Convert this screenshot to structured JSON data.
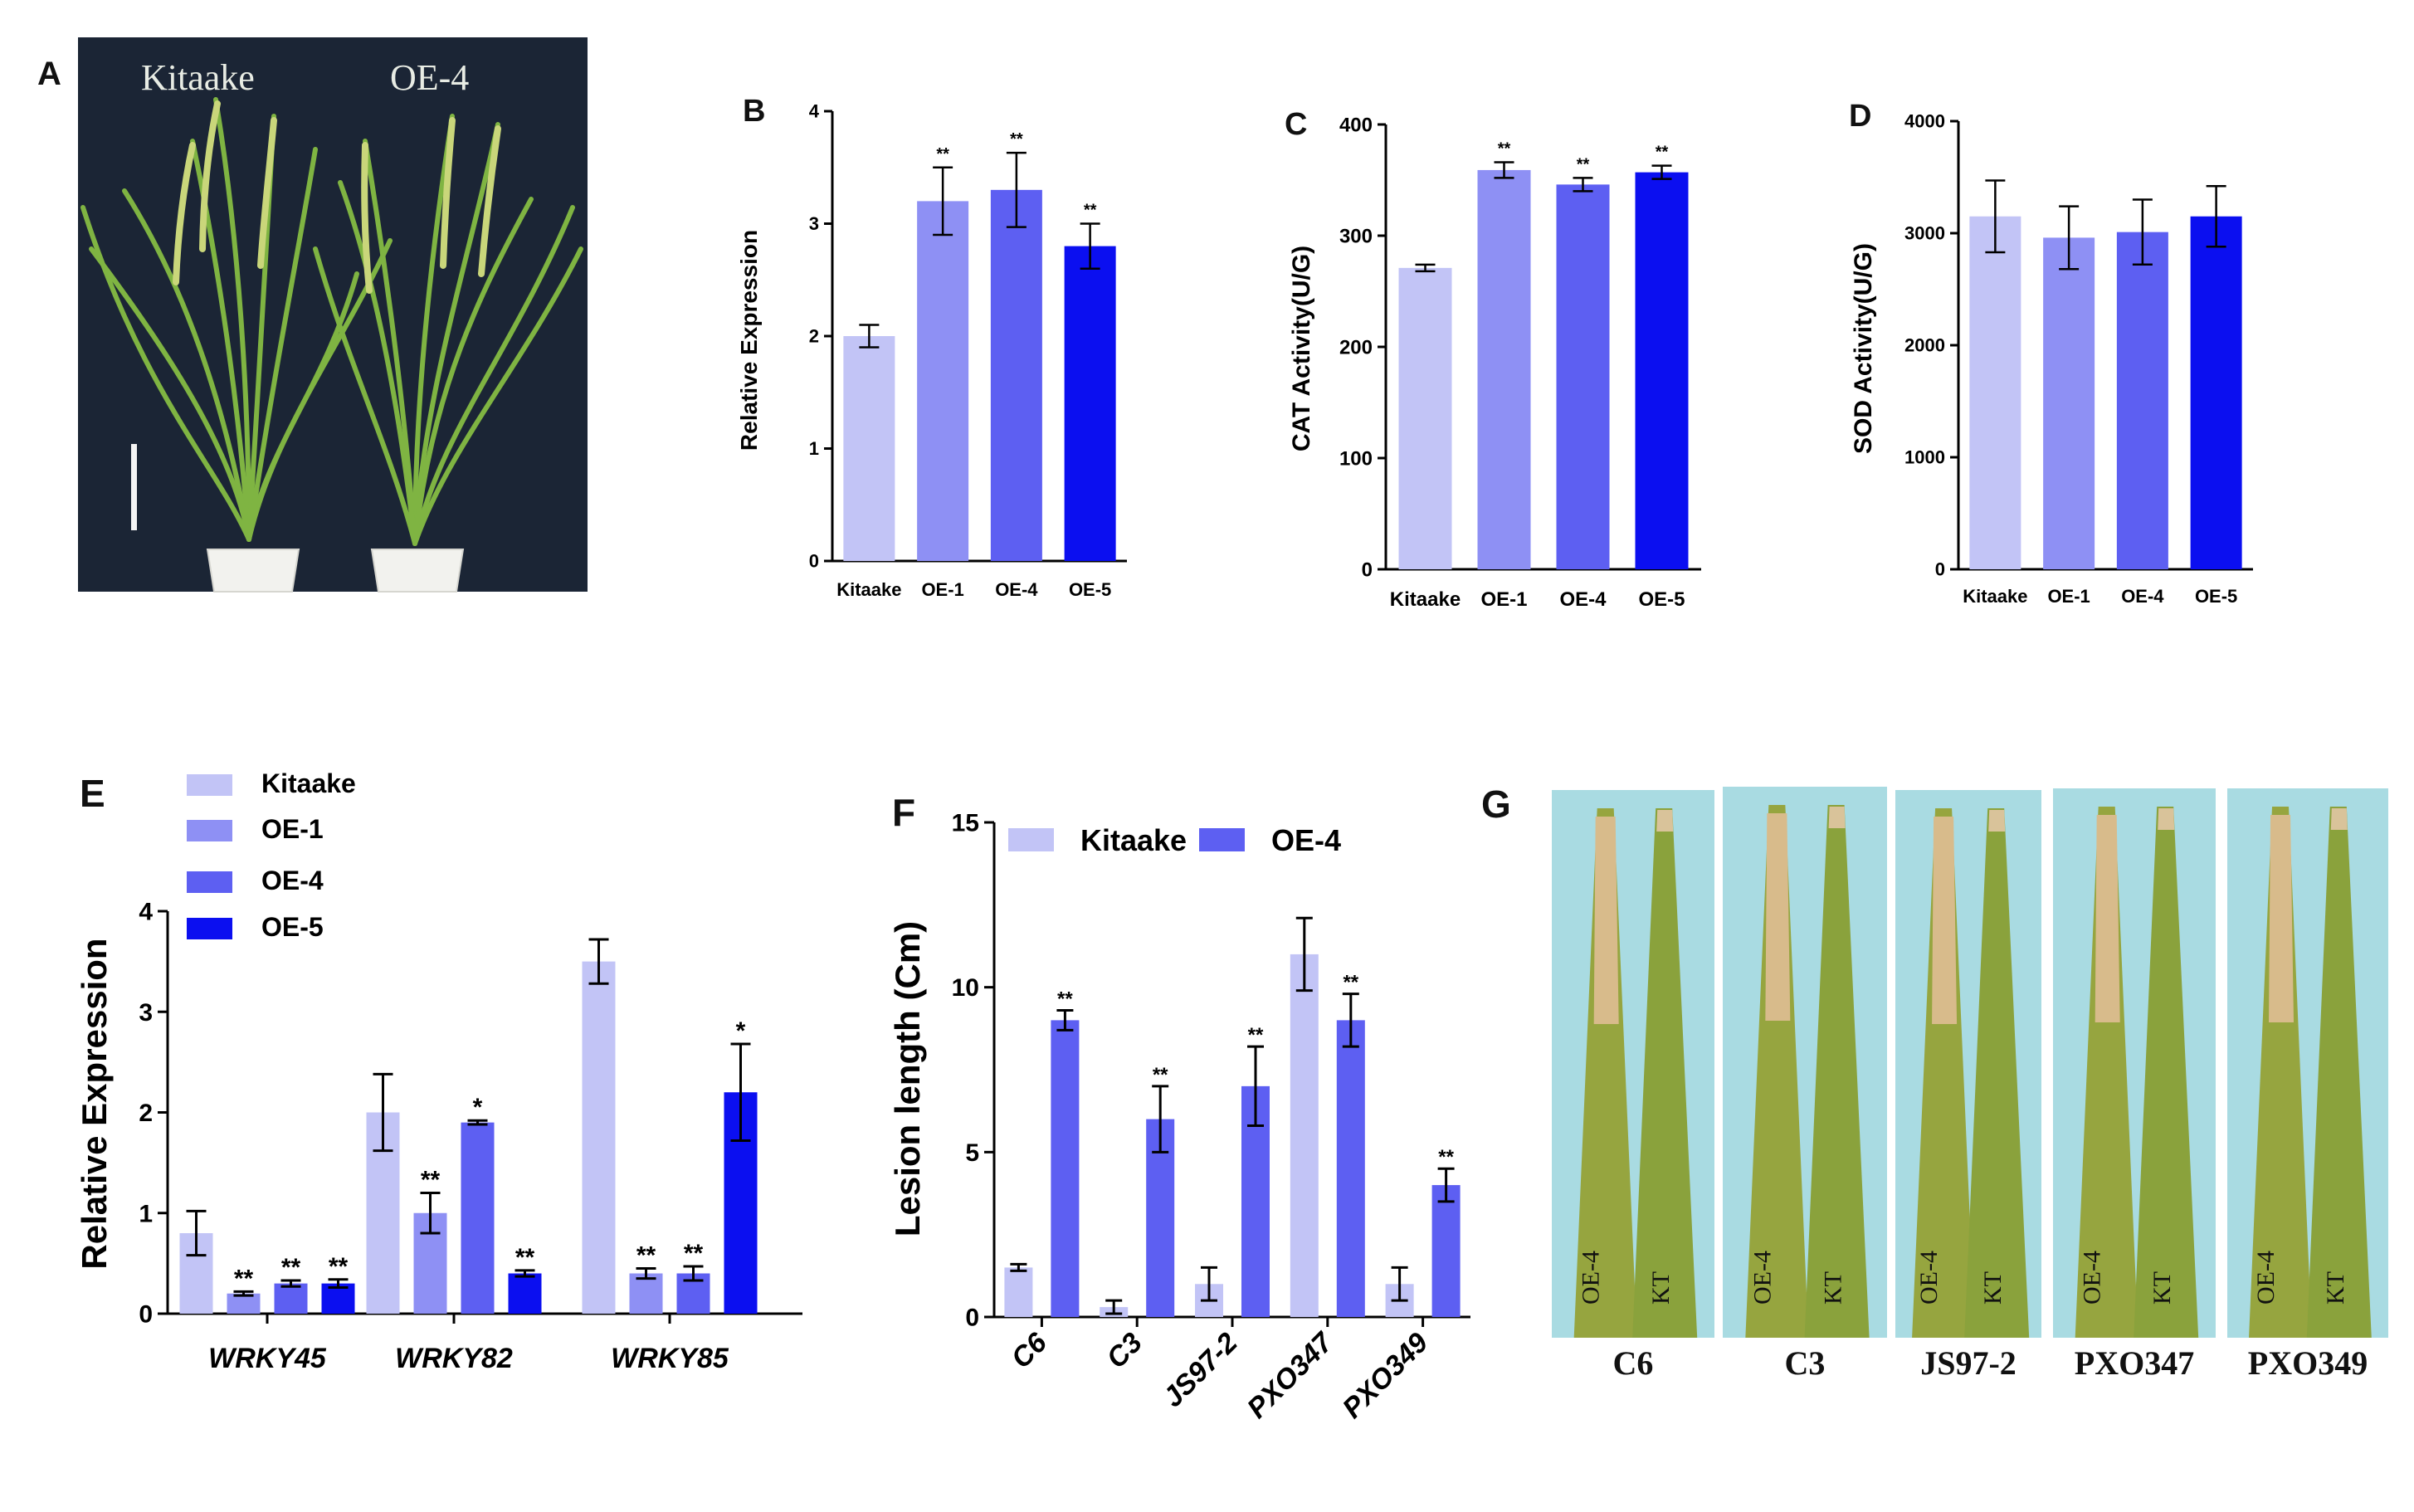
{
  "panel_letters": {
    "a": "A",
    "b": "B",
    "c": "C",
    "d": "D",
    "e": "E",
    "f": "F",
    "g": "G"
  },
  "photo_a": {
    "left_label": "Kitaake",
    "right_label": "OE-4"
  },
  "photo_g": {
    "leaf_labels": [
      "C6",
      "C3",
      "JS97-2",
      "PXO347",
      "PXO349"
    ],
    "sample_left": "OE-4",
    "sample_right": "KT"
  },
  "colors": {
    "kitaake": "#c2c4f6",
    "oe1": "#8e90f4",
    "oe4": "#5d5ff2",
    "oe5": "#0b0ff0",
    "photo_bg": "#a9dbe2",
    "plant_bg": "#1a2433"
  },
  "chart_data": [
    {
      "id": "B",
      "type": "bar",
      "title": "",
      "xlabel": "",
      "ylabel": "Relative Expression",
      "categories": [
        "Kitaake",
        "OE-1",
        "OE-4",
        "OE-5"
      ],
      "values": [
        2.0,
        3.2,
        3.3,
        2.8
      ],
      "errors": [
        0.1,
        0.3,
        0.33,
        0.2
      ],
      "significance": [
        "",
        "**",
        "**",
        "**"
      ],
      "ylim": [
        0,
        4
      ],
      "yticks": [
        "0",
        "1",
        "2",
        "3",
        "4"
      ]
    },
    {
      "id": "C",
      "type": "bar",
      "title": "",
      "xlabel": "",
      "ylabel": "CAT Activity(U/G)",
      "categories": [
        "Kitaake",
        "OE-1",
        "OE-4",
        "OE-5"
      ],
      "values": [
        271,
        359,
        346,
        357
      ],
      "errors": [
        3,
        7,
        6,
        6
      ],
      "significance": [
        "",
        "**",
        "**",
        "**"
      ],
      "ylim": [
        0,
        400
      ],
      "yticks": [
        "0",
        "100",
        "200",
        "300",
        "400"
      ]
    },
    {
      "id": "D",
      "type": "bar",
      "title": "",
      "xlabel": "",
      "ylabel": "SOD Activity(U/G)",
      "categories": [
        "Kitaake",
        "OE-1",
        "OE-4",
        "OE-5"
      ],
      "values": [
        3150,
        2960,
        3010,
        3150
      ],
      "errors": [
        320,
        280,
        290,
        270
      ],
      "significance": [
        "",
        "",
        "",
        ""
      ],
      "ylim": [
        0,
        4000
      ],
      "yticks": [
        "0",
        "1000",
        "2000",
        "3000",
        "4000"
      ]
    },
    {
      "id": "E",
      "type": "bar",
      "title": "",
      "xlabel": "",
      "ylabel": "Relative Expression",
      "categories": [
        "WRKY45",
        "WRKY82",
        "WRKY85"
      ],
      "series": [
        {
          "name": "Kitaake",
          "values": [
            0.8,
            2.0,
            3.5
          ],
          "errors": [
            0.22,
            0.38,
            0.22
          ],
          "significance": [
            "",
            "",
            ""
          ]
        },
        {
          "name": "OE-1",
          "values": [
            0.2,
            1.0,
            0.4
          ],
          "errors": [
            0.02,
            0.2,
            0.05
          ],
          "significance": [
            "**",
            "**",
            "**"
          ]
        },
        {
          "name": "OE-4",
          "values": [
            0.3,
            1.9,
            0.4
          ],
          "errors": [
            0.03,
            0.02,
            0.07
          ],
          "significance": [
            "**",
            "*",
            "**"
          ]
        },
        {
          "name": "OE-5",
          "values": [
            0.3,
            0.4,
            2.2
          ],
          "errors": [
            0.04,
            0.03,
            0.48
          ],
          "significance": [
            "**",
            "**",
            "*"
          ]
        }
      ],
      "ylim": [
        0,
        4
      ],
      "yticks": [
        "0",
        "1",
        "2",
        "3",
        "4"
      ],
      "legend": "top-left"
    },
    {
      "id": "F",
      "type": "bar",
      "title": "",
      "xlabel": "",
      "ylabel": "Lesion length (Cm)",
      "categories": [
        "C6",
        "C3",
        "JS97-2",
        "PXO347",
        "PXO349"
      ],
      "series": [
        {
          "name": "Kitaake",
          "values": [
            1.5,
            0.3,
            1.0,
            11.0,
            1.0
          ],
          "errors": [
            0.1,
            0.2,
            0.5,
            1.1,
            0.5
          ],
          "significance": [
            "",
            "",
            "",
            "",
            ""
          ]
        },
        {
          "name": "OE-4",
          "values": [
            9.0,
            6.0,
            7.0,
            9.0,
            4.0
          ],
          "errors": [
            0.3,
            1.0,
            1.2,
            0.8,
            0.5
          ],
          "significance": [
            "**",
            "**",
            "**",
            "**",
            "**"
          ]
        }
      ],
      "ylim": [
        0,
        15
      ],
      "yticks": [
        "0",
        "5",
        "10",
        "15"
      ],
      "legend": "top"
    }
  ]
}
